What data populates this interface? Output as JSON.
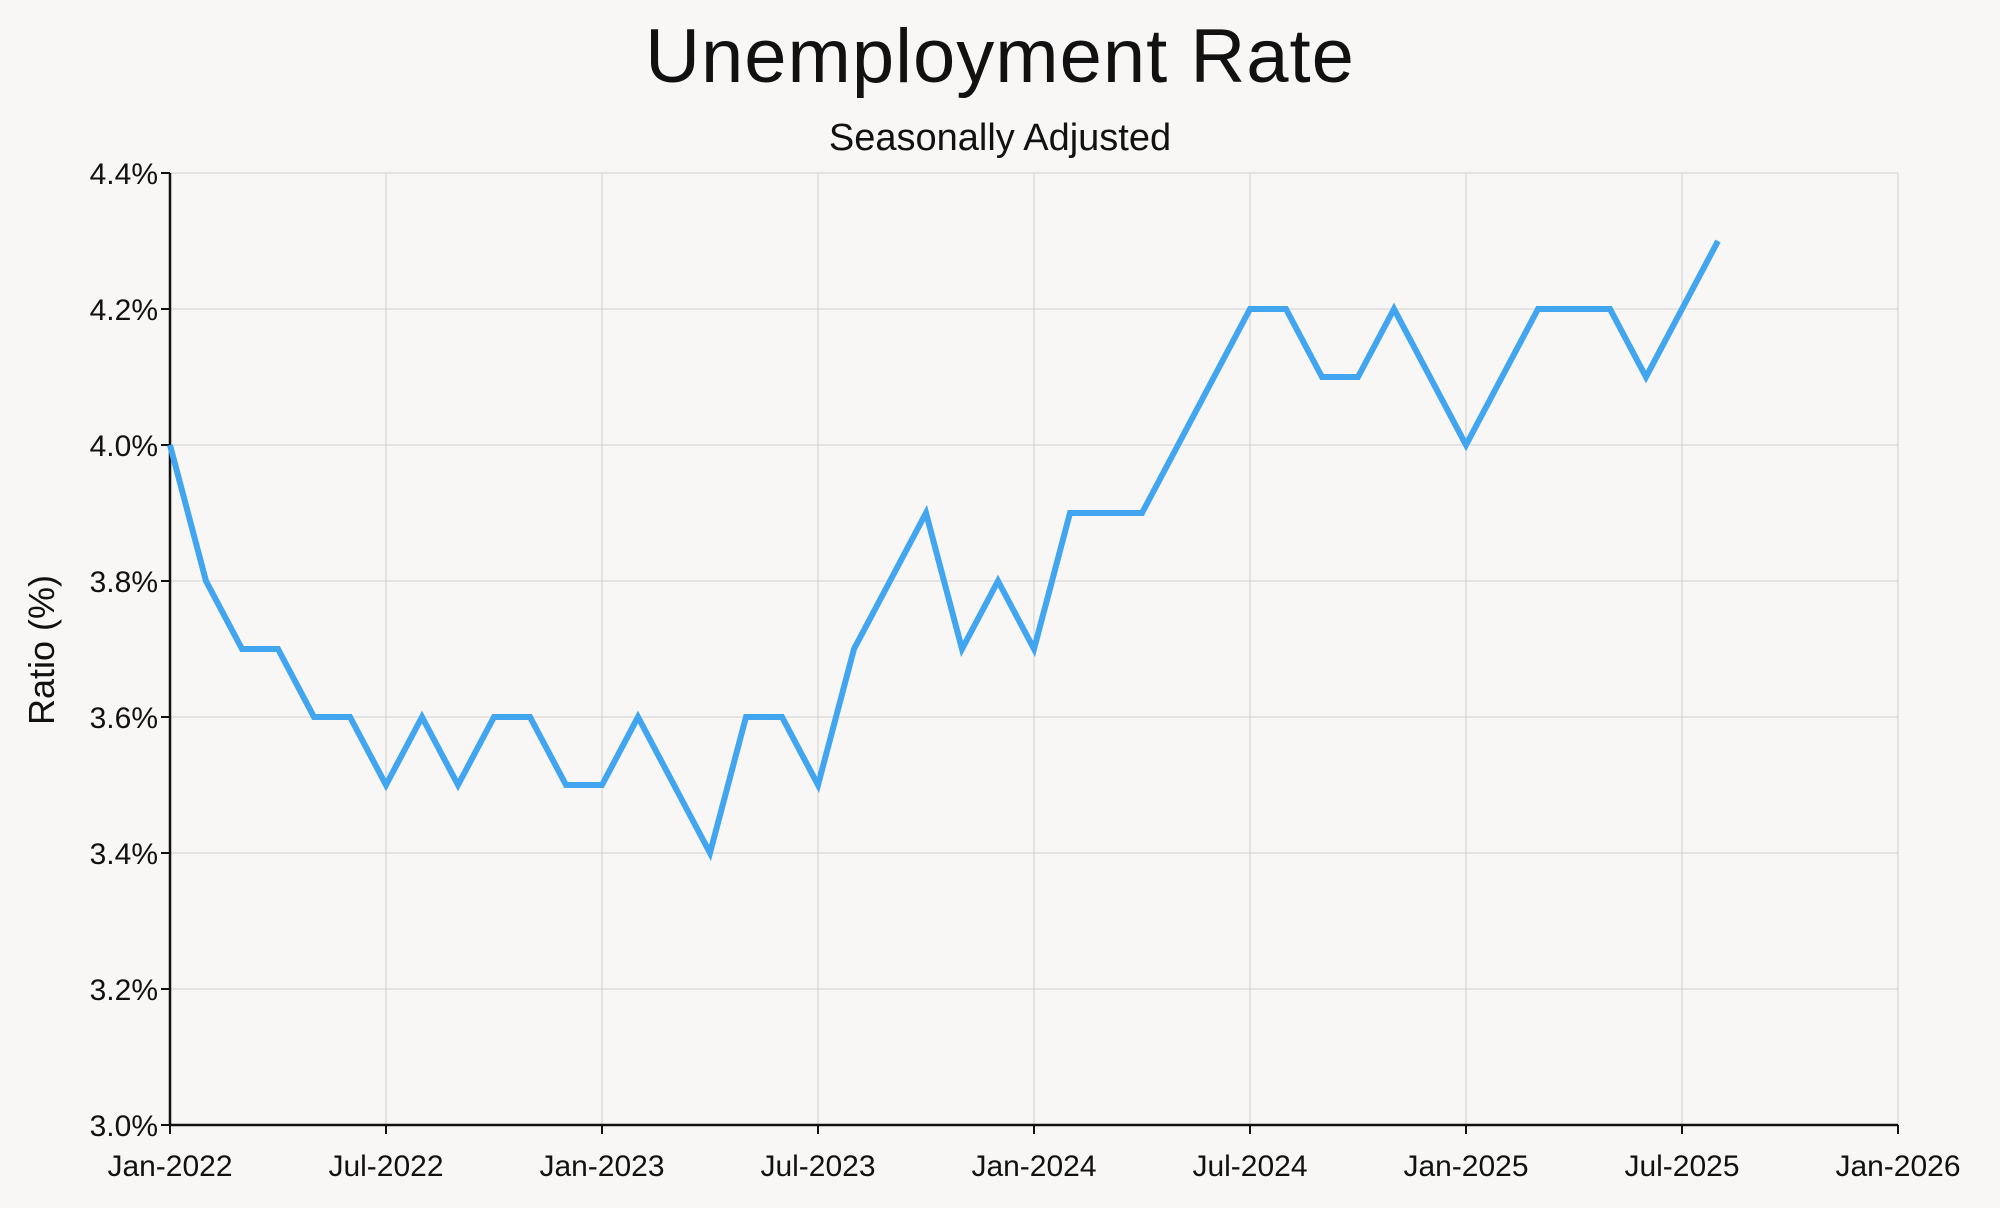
{
  "chart_data": {
    "type": "line",
    "title": "Unemployment Rate",
    "subtitle": "Seasonally Adjusted",
    "xlabel": "",
    "ylabel": "Ratio (%)",
    "ylim": [
      3.0,
      4.4
    ],
    "xlim": [
      "2022-01",
      "2026-01"
    ],
    "y_ticks": [
      3.0,
      3.2,
      3.4,
      3.6,
      3.8,
      4.0,
      4.2,
      4.4
    ],
    "y_tick_labels": [
      "3.0%",
      "3.2%",
      "3.4%",
      "3.6%",
      "3.8%",
      "4.0%",
      "4.2%",
      "4.4%"
    ],
    "x_ticks": [
      "2022-01",
      "2022-07",
      "2023-01",
      "2023-07",
      "2024-01",
      "2024-07",
      "2025-01",
      "2025-07",
      "2026-01"
    ],
    "x_tick_labels": [
      "Jan-2022",
      "Jul-2022",
      "Jan-2023",
      "Jul-2023",
      "Jan-2024",
      "Jul-2024",
      "Jan-2025",
      "Jul-2025",
      "Jan-2026"
    ],
    "grid": true,
    "line_color": "#42a5f0",
    "x": [
      "2022-01",
      "2022-02",
      "2022-03",
      "2022-04",
      "2022-05",
      "2022-06",
      "2022-07",
      "2022-08",
      "2022-09",
      "2022-10",
      "2022-11",
      "2022-12",
      "2023-01",
      "2023-02",
      "2023-03",
      "2023-04",
      "2023-05",
      "2023-06",
      "2023-07",
      "2023-08",
      "2023-09",
      "2023-10",
      "2023-11",
      "2023-12",
      "2024-01",
      "2024-02",
      "2024-03",
      "2024-04",
      "2024-05",
      "2024-06",
      "2024-07",
      "2024-08",
      "2024-09",
      "2024-10",
      "2024-11",
      "2024-12",
      "2025-01",
      "2025-02",
      "2025-03",
      "2025-04",
      "2025-05",
      "2025-06",
      "2025-07",
      "2025-08"
    ],
    "values": [
      4.0,
      3.8,
      3.7,
      3.7,
      3.6,
      3.6,
      3.5,
      3.6,
      3.5,
      3.6,
      3.6,
      3.5,
      3.5,
      3.6,
      3.5,
      3.4,
      3.6,
      3.6,
      3.5,
      3.7,
      3.8,
      3.9,
      3.7,
      3.8,
      3.7,
      3.9,
      3.9,
      3.9,
      4.0,
      4.1,
      4.2,
      4.2,
      4.1,
      4.1,
      4.2,
      4.1,
      4.0,
      4.1,
      4.2,
      4.2,
      4.2,
      4.1,
      4.2,
      4.3
    ]
  }
}
